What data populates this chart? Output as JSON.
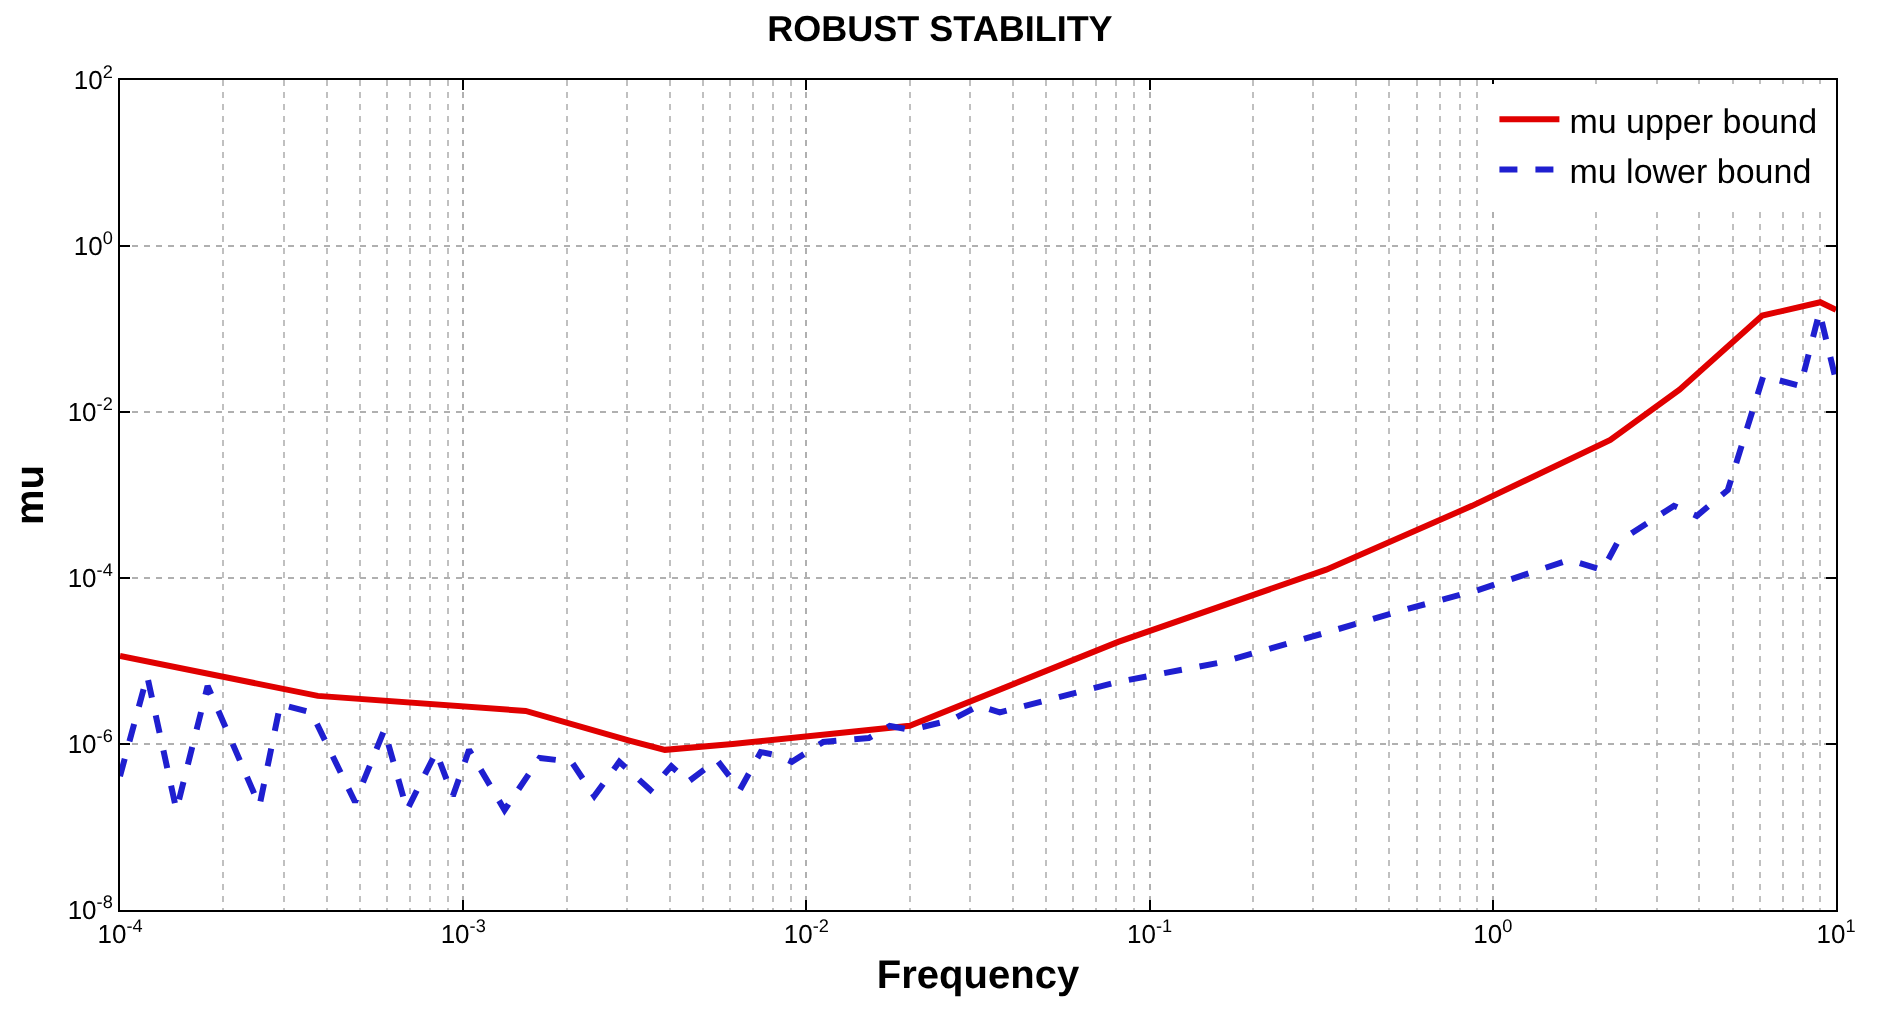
{
  "chart_data": {
    "type": "line",
    "title": "ROBUST STABILITY",
    "xlabel": "Frequency",
    "ylabel": "mu",
    "log": "xy",
    "grid": true,
    "legend": "top right",
    "xlim": [
      0.0001,
      10
    ],
    "ylim": [
      1e-08,
      100
    ],
    "xticks": [
      {
        "value": 0.0001,
        "label": "10$^{-4}$"
      },
      {
        "value": 0.001,
        "label": "10$^{-3}$"
      },
      {
        "value": 0.01,
        "label": "10$^{-2}$"
      },
      {
        "value": 0.1,
        "label": "10$^{-1}$"
      },
      {
        "value": 1,
        "label": "10$^{0}$"
      },
      {
        "value": 10,
        "label": "10$^{1}$"
      }
    ],
    "yticks": [
      {
        "value": 1e-08,
        "label": "10$^{-8}$"
      },
      {
        "value": 1e-06,
        "label": "10$^{-6}$"
      },
      {
        "value": 0.0001,
        "label": "10$^{-4}$"
      },
      {
        "value": 0.01,
        "label": "10$^{-2}$"
      },
      {
        "value": 1,
        "label": "10$^{0}$"
      },
      {
        "value": 100,
        "label": "10$^{2}$"
      }
    ],
    "series": [
      {
        "name": "mu upper bound",
        "color": "#e00000",
        "line_style": "solid",
        "x": [
          0.0001,
          0.000377,
          0.00152,
          0.00305,
          0.00387,
          0.0061,
          0.02,
          0.081,
          0.327,
          0.87,
          2.2,
          3.5,
          6.1,
          9.0,
          10
        ],
        "values": [
          1.15e-05,
          3.8e-06,
          2.5e-06,
          1.1e-06,
          8.5e-07,
          1e-06,
          1.66e-06,
          1.7e-05,
          0.000126,
          0.00074,
          0.0046,
          0.0186,
          0.145,
          0.21,
          0.17
        ]
      },
      {
        "name": "mu lower bound",
        "color": "#1f1fd0",
        "line_style": "dashed",
        "x": [
          0.0001,
          0.00012,
          0.000146,
          0.00018,
          0.000255,
          0.000293,
          0.000361,
          0.000484,
          0.000589,
          0.000686,
          0.000834,
          0.000933,
          0.00104,
          0.00132,
          0.00167,
          0.00207,
          0.00241,
          0.00285,
          0.00351,
          0.00404,
          0.00452,
          0.00549,
          0.0064,
          0.00736,
          0.00834,
          0.00907,
          0.0112,
          0.0152,
          0.0175,
          0.0201,
          0.0265,
          0.0318,
          0.0366,
          0.081,
          0.163,
          0.327,
          0.548,
          0.91,
          1.67,
          2.09,
          2.31,
          3.37,
          3.93,
          4.84,
          6.14,
          7.88,
          8.95,
          10
        ],
        "values": [
          4.1e-07,
          6.6e-06,
          1.6e-07,
          5e-06,
          1.8e-07,
          3e-06,
          2.4e-06,
          2e-07,
          1.48e-06,
          1.6e-07,
          8e-07,
          2.36e-07,
          8.5e-07,
          1.6e-07,
          6.8e-07,
          6.1e-07,
          2.36e-07,
          6.1e-07,
          2.8e-07,
          5.4e-07,
          3.5e-07,
          6.4e-07,
          2.8e-07,
          8e-07,
          7.2e-07,
          6.1e-07,
          1.06e-06,
          1.18e-06,
          1.65e-06,
          1.48e-06,
          1.95e-06,
          2.9e-06,
          2.4e-06,
          5.6e-06,
          9.7e-06,
          2.2e-05,
          4.1e-05,
          7.2e-05,
          0.000165,
          0.000125,
          0.00027,
          0.00074,
          0.00056,
          0.00115,
          0.027,
          0.0206,
          0.16,
          0.024
        ]
      }
    ]
  }
}
